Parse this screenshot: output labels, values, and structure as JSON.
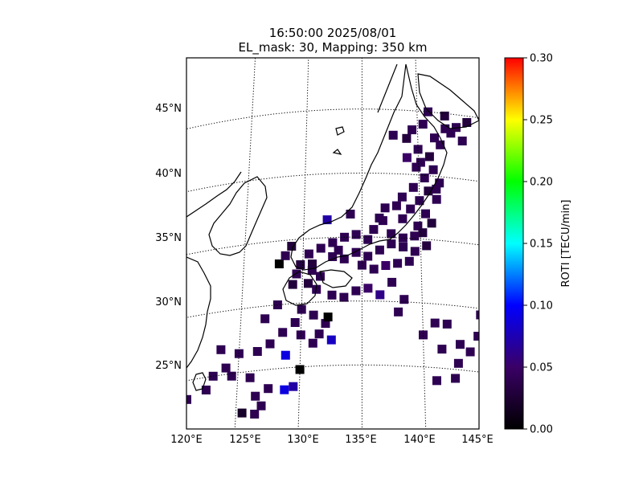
{
  "title": {
    "line1": "16:50:00 2025/08/01",
    "line2": "EL_mask: 30, Mapping: 350 km"
  },
  "map": {
    "lon_range": [
      120,
      145
    ],
    "lat_range": [
      20,
      49
    ],
    "lat_labels": [
      "45°N",
      "40°N",
      "35°N",
      "30°N",
      "25°N"
    ],
    "lon_labels": [
      "120°E",
      "125°E",
      "130°E",
      "135°E",
      "140°E",
      "145°E"
    ],
    "graticule": "dotted"
  },
  "colorbar": {
    "label": "ROTI [TECU/min]",
    "min": 0.0,
    "max": 0.3,
    "ticks": [
      "0.00",
      "0.05",
      "0.10",
      "0.15",
      "0.20",
      "0.25",
      "0.30"
    ],
    "colors": [
      "#000000",
      "#3a0066",
      "#0000ff",
      "#00ffff",
      "#00ff00",
      "#ffff00",
      "#ff0000"
    ]
  },
  "chart_data": {
    "type": "heatmap",
    "value_unit": "TECU/min",
    "cells_lon_lat_roti": [
      [
        141.0,
        45.0,
        0.04
      ],
      [
        142.5,
        44.8,
        0.03
      ],
      [
        144.5,
        44.5,
        0.03
      ],
      [
        140.5,
        44.0,
        0.04
      ],
      [
        143.0,
        43.5,
        0.04
      ],
      [
        141.5,
        43.0,
        0.04
      ],
      [
        144.0,
        43.0,
        0.04
      ],
      [
        142.0,
        42.5,
        0.04
      ],
      [
        140.0,
        42.0,
        0.04
      ],
      [
        141.0,
        41.5,
        0.03
      ],
      [
        137.8,
        43.0,
        0.04
      ],
      [
        139.0,
        42.8,
        0.03
      ],
      [
        139.0,
        41.3,
        0.05
      ],
      [
        139.8,
        40.6,
        0.04
      ],
      [
        141.3,
        40.5,
        0.04
      ],
      [
        140.5,
        39.8,
        0.04
      ],
      [
        141.8,
        39.5,
        0.04
      ],
      [
        139.5,
        39.0,
        0.04
      ],
      [
        140.8,
        38.8,
        0.03
      ],
      [
        141.5,
        38.2,
        0.04
      ],
      [
        140.0,
        38.0,
        0.04
      ],
      [
        138.5,
        38.2,
        0.04
      ],
      [
        139.2,
        37.3,
        0.04
      ],
      [
        140.5,
        37.0,
        0.04
      ],
      [
        141.0,
        36.3,
        0.03
      ],
      [
        138.0,
        37.5,
        0.04
      ],
      [
        137.0,
        37.3,
        0.04
      ],
      [
        136.5,
        36.5,
        0.04
      ],
      [
        138.5,
        36.5,
        0.04
      ],
      [
        139.8,
        36.0,
        0.04
      ],
      [
        140.2,
        35.5,
        0.03
      ],
      [
        139.5,
        35.2,
        0.04
      ],
      [
        138.5,
        35.0,
        0.04
      ],
      [
        137.5,
        35.3,
        0.04
      ],
      [
        136.0,
        35.6,
        0.04
      ],
      [
        135.5,
        34.8,
        0.04
      ],
      [
        134.5,
        35.2,
        0.04
      ],
      [
        133.5,
        35.0,
        0.04
      ],
      [
        132.5,
        34.6,
        0.04
      ],
      [
        131.5,
        34.2,
        0.04
      ],
      [
        130.5,
        33.8,
        0.04
      ],
      [
        129.8,
        33.0,
        0.03
      ],
      [
        130.8,
        32.5,
        0.04
      ],
      [
        131.5,
        32.0,
        0.04
      ],
      [
        130.5,
        31.5,
        0.03
      ],
      [
        131.2,
        31.0,
        0.04
      ],
      [
        132.5,
        33.5,
        0.04
      ],
      [
        133.5,
        33.3,
        0.04
      ],
      [
        134.5,
        33.8,
        0.04
      ],
      [
        135.5,
        33.5,
        0.04
      ],
      [
        136.5,
        34.0,
        0.04
      ],
      [
        137.5,
        34.5,
        0.04
      ],
      [
        138.5,
        34.3,
        0.04
      ],
      [
        139.5,
        34.0,
        0.04
      ],
      [
        140.5,
        34.5,
        0.03
      ],
      [
        135.0,
        32.8,
        0.04
      ],
      [
        136.0,
        32.5,
        0.04
      ],
      [
        137.0,
        32.8,
        0.05
      ],
      [
        138.0,
        33.0,
        0.04
      ],
      [
        139.0,
        33.2,
        0.04
      ],
      [
        132.5,
        30.5,
        0.04
      ],
      [
        133.5,
        30.3,
        0.04
      ],
      [
        134.5,
        30.8,
        0.04
      ],
      [
        135.5,
        31.0,
        0.05
      ],
      [
        136.5,
        30.5,
        0.06
      ],
      [
        137.5,
        31.5,
        0.04
      ],
      [
        138.5,
        30.2,
        0.04
      ],
      [
        132.0,
        36.4,
        0.07
      ],
      [
        134.0,
        36.8,
        0.04
      ],
      [
        133.0,
        34.0,
        0.04
      ],
      [
        129.0,
        34.5,
        0.03
      ],
      [
        128.0,
        33.2,
        0.0
      ],
      [
        128.5,
        33.8,
        0.04
      ],
      [
        129.5,
        32.3,
        0.04
      ],
      [
        129.2,
        31.5,
        0.03
      ],
      [
        130.0,
        29.5,
        0.04
      ],
      [
        131.0,
        29.0,
        0.04
      ],
      [
        132.0,
        28.3,
        0.04
      ],
      [
        131.5,
        27.5,
        0.04
      ],
      [
        132.5,
        27.0,
        0.08
      ],
      [
        131.0,
        26.8,
        0.04
      ],
      [
        130.0,
        27.5,
        0.04
      ],
      [
        129.5,
        28.5,
        0.04
      ],
      [
        128.5,
        27.8,
        0.04
      ],
      [
        127.5,
        27.0,
        0.04
      ],
      [
        126.5,
        26.5,
        0.04
      ],
      [
        125.0,
        26.5,
        0.04
      ],
      [
        124.0,
        25.5,
        0.04
      ],
      [
        123.0,
        25.0,
        0.04
      ],
      [
        124.5,
        24.8,
        0.04
      ],
      [
        126.0,
        24.5,
        0.04
      ],
      [
        128.8,
        26.0,
        0.09
      ],
      [
        130.0,
        24.8,
        0.0
      ],
      [
        129.5,
        23.5,
        0.07
      ],
      [
        128.8,
        23.3,
        0.09
      ],
      [
        127.5,
        23.5,
        0.04
      ],
      [
        126.5,
        23.0,
        0.04
      ],
      [
        127.0,
        22.2,
        0.04
      ],
      [
        125.5,
        21.8,
        0.02
      ],
      [
        126.5,
        21.6,
        0.04
      ],
      [
        122.5,
        24.0,
        0.04
      ],
      [
        121.0,
        23.5,
        0.04
      ],
      [
        128.0,
        30.0,
        0.04
      ],
      [
        127.0,
        29.0,
        0.04
      ],
      [
        123.5,
        27.0,
        0.04
      ],
      [
        140.0,
        27.5,
        0.04
      ],
      [
        141.0,
        28.5,
        0.04
      ],
      [
        142.0,
        28.5,
        0.04
      ],
      [
        141.5,
        26.5,
        0.04
      ],
      [
        143.0,
        27.0,
        0.04
      ],
      [
        143.8,
        26.5,
        0.04
      ],
      [
        144.5,
        27.8,
        0.04
      ],
      [
        142.8,
        25.5,
        0.04
      ],
      [
        142.5,
        24.3,
        0.04
      ],
      [
        141.0,
        24.0,
        0.04
      ],
      [
        144.8,
        29.5,
        0.04
      ],
      [
        138.0,
        29.2,
        0.04
      ],
      [
        132.2,
        28.8,
        0.0
      ],
      [
        130.8,
        33.0,
        0.03
      ],
      [
        136.8,
        36.3,
        0.04
      ],
      [
        142.5,
        43.8,
        0.04
      ],
      [
        143.5,
        44.0,
        0.04
      ],
      [
        139.5,
        43.5,
        0.04
      ],
      [
        140.2,
        41.0,
        0.04
      ],
      [
        141.5,
        39.0,
        0.04
      ]
    ]
  }
}
